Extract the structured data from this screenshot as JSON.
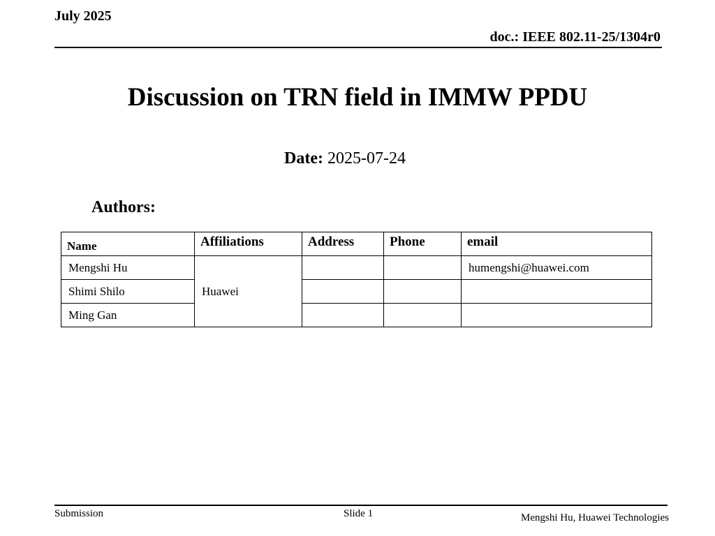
{
  "header": {
    "date": "July 2025",
    "doc": "doc.: IEEE 802.11-25/1304r0"
  },
  "title": "Discussion on TRN field in IMMW PPDU",
  "date_label": "Date:",
  "date_value": "2025-07-24",
  "authors_label": "Authors:",
  "table": {
    "headers": [
      "Name",
      "Affiliations",
      "Address",
      "Phone",
      "email"
    ],
    "rows": [
      {
        "name": "Mengshi Hu",
        "email": "humengshi@huawei.com"
      },
      {
        "name": "Shimi Shilo",
        "email": ""
      },
      {
        "name": "Ming Gan",
        "email": ""
      }
    ],
    "affiliation": "Huawei"
  },
  "footer": {
    "left": "Submission",
    "slide": "Slide 1",
    "right": "Mengshi Hu, Huawei Technologies"
  }
}
